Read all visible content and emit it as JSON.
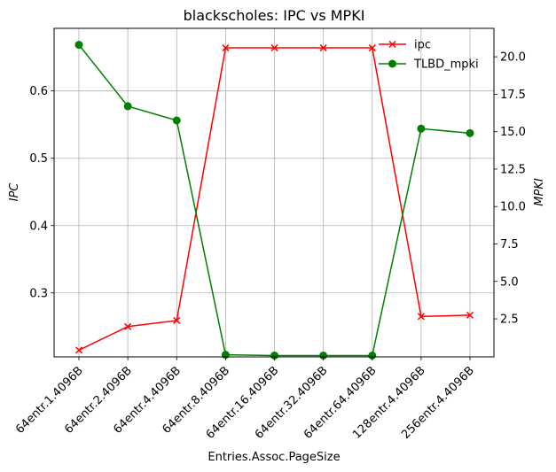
{
  "chart_data": {
    "type": "line",
    "title": "blackscholes: IPC vs MPKI",
    "xlabel": "Entries.Assoc.PageSize",
    "ylabel_left": "IPC",
    "ylabel_right": "MPKI",
    "categories": [
      "64entr.1.4096B",
      "64entr.2.4096B",
      "64entr.4.4096B",
      "64entr.8.4096B",
      "64entr.16.4096B",
      "64entr.32.4096B",
      "64entr.64.4096B",
      "128entr.4.4096B",
      "256entr.4.4096B"
    ],
    "series": [
      {
        "name": "ipc",
        "axis": "left",
        "color": "#ff0000",
        "marker": "x",
        "values": [
          0.215,
          0.25,
          0.259,
          0.664,
          0.664,
          0.664,
          0.664,
          0.265,
          0.267
        ]
      },
      {
        "name": "TLBD_mpki",
        "axis": "right",
        "color": "#008000",
        "marker": "circle",
        "values": [
          20.8,
          16.7,
          15.75,
          0.1,
          0.05,
          0.05,
          0.05,
          15.2,
          14.9
        ]
      }
    ],
    "ylim_left": [
      0.205,
      0.693
    ],
    "yticks_left": [
      "0.3",
      "0.4",
      "0.5",
      "0.6"
    ],
    "ylim_right": [
      -0.04,
      21.9
    ],
    "yticks_right": [
      "2.5",
      "5.0",
      "7.5",
      "10.0",
      "12.5",
      "15.0",
      "17.5",
      "20.0"
    ],
    "grid": true,
    "legend_position": "top-right"
  }
}
